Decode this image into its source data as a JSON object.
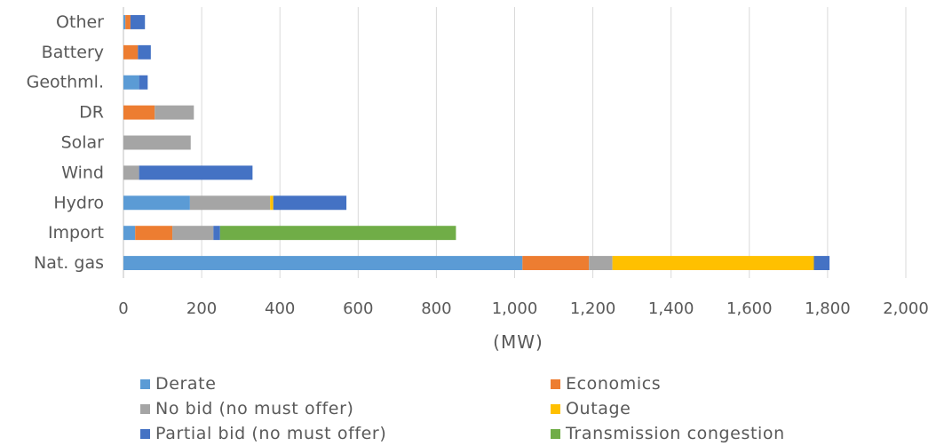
{
  "chart_data": {
    "type": "bar",
    "orientation": "horizontal",
    "stacked": true,
    "categories": [
      "Nat. gas",
      "Import",
      "Hydro",
      "Wind",
      "Solar",
      "DR",
      "Geothml.",
      "Battery",
      "Other"
    ],
    "series": [
      {
        "name": "Derate",
        "color": "#5B9BD5",
        "values": [
          1020,
          30,
          170,
          0,
          0,
          0,
          40,
          0,
          5
        ]
      },
      {
        "name": "Economics",
        "color": "#ED7D31",
        "values": [
          170,
          95,
          0,
          0,
          0,
          80,
          0,
          37,
          13
        ]
      },
      {
        "name": "No bid (no must offer)",
        "color": "#A5A5A5",
        "values": [
          60,
          105,
          205,
          40,
          172,
          100,
          0,
          0,
          0
        ]
      },
      {
        "name": "Outage",
        "color": "#FFC000",
        "values": [
          515,
          0,
          8,
          0,
          0,
          0,
          0,
          0,
          0
        ]
      },
      {
        "name": "Partial bid (no must offer)",
        "color": "#4472C4",
        "values": [
          40,
          17,
          187,
          290,
          0,
          0,
          22,
          33,
          37
        ]
      },
      {
        "name": "Transmission congestion",
        "color": "#70AD47",
        "values": [
          0,
          603,
          0,
          0,
          0,
          0,
          0,
          0,
          0
        ]
      }
    ],
    "xlabel": "(MW)",
    "xlim": [
      0,
      2000
    ],
    "xticks": [
      "0",
      "200",
      "400",
      "600",
      "800",
      "1,000",
      "1,200",
      "1,400",
      "1,600",
      "1,800",
      "2,000"
    ],
    "grid": "vertical",
    "legend": "bottom"
  }
}
